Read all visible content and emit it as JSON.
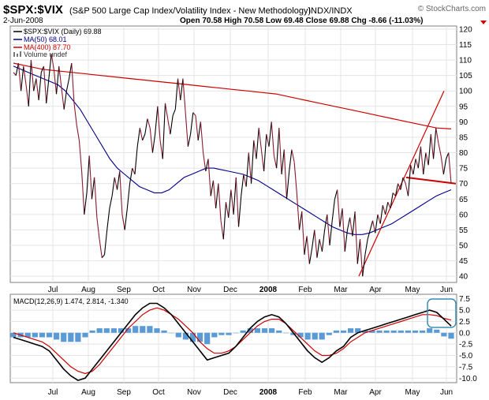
{
  "header": {
    "symbol": "$SPX:$VIX",
    "description": "(S&P 500 Large Cap Index/Volatility Index - New Methodology)",
    "exchange": "INDX/INDX",
    "copyright": "© StockCharts.com",
    "date": "2-Jun-2008",
    "ohlc": "Open 70.58  High 70.58  Low 69.48  Close 69.88  Chg -8.66 (-11.03%)"
  },
  "colors": {
    "price": "#000000",
    "price_down": "#8a1a2e",
    "ma50": "#00008b",
    "ma400": "#cc0000",
    "trend": "#cc0000",
    "macd": "#000000",
    "signal": "#cc0000",
    "histogram": "#5b9bd5",
    "highlight": "#3a8fb5"
  },
  "chart_data": [
    {
      "type": "line",
      "panel": "price",
      "title": "$SPX:$VIX (Daily) 69.88",
      "legend": [
        "$SPX:$VIX (Daily) 69.88",
        "MA(50) 68.01",
        "MA(400) 87.70",
        "Volume undef"
      ],
      "legend_position": "top-left",
      "x_ticks": [
        "Jul",
        "Aug",
        "Sep",
        "Oct",
        "Nov",
        "Dec",
        "2008",
        "Feb",
        "Mar",
        "Apr",
        "May",
        "Jun"
      ],
      "y_ticks": [
        40,
        45,
        50,
        55,
        60,
        65,
        70,
        75,
        80,
        85,
        90,
        95,
        100,
        105,
        110,
        115,
        120
      ],
      "ylim": [
        38,
        121
      ],
      "grid": true,
      "series": [
        {
          "name": "$SPX:$VIX (Daily)",
          "last": 69.88,
          "values": [
            106,
            105,
            109,
            100,
            108,
            102,
            95,
            110,
            100,
            104,
            97,
            106,
            108,
            96,
            104,
            112,
            107,
            99,
            108,
            101,
            94,
            100,
            104,
            109,
            96,
            89,
            84,
            74,
            60,
            67,
            79,
            65,
            72,
            59,
            52,
            46,
            47,
            55,
            62,
            66,
            72,
            68,
            74,
            60,
            55,
            62,
            70,
            75,
            73,
            82,
            88,
            84,
            86,
            91,
            88,
            80,
            86,
            95,
            84,
            78,
            96,
            91,
            86,
            92,
            94,
            104,
            97,
            104,
            93,
            82,
            86,
            93,
            92,
            84,
            90,
            80,
            74,
            78,
            66,
            71,
            62,
            70,
            58,
            52,
            64,
            59,
            68,
            60,
            72,
            56,
            66,
            73,
            69,
            80,
            70,
            84,
            78,
            88,
            81,
            74,
            86,
            82,
            90,
            79,
            75,
            88,
            73,
            81,
            65,
            74,
            81,
            77,
            67,
            55,
            61,
            47,
            53,
            44,
            49,
            55,
            46,
            52,
            48,
            55,
            60,
            50,
            58,
            65,
            68,
            56,
            62,
            48,
            55,
            59,
            53,
            61,
            44,
            52,
            40,
            47,
            52,
            55,
            58,
            54,
            60,
            57,
            63,
            60,
            64,
            62,
            67,
            66,
            70,
            68,
            72,
            70,
            66,
            76,
            73,
            78,
            75,
            82,
            73,
            80,
            76,
            86,
            78,
            88,
            83,
            79,
            73,
            78,
            80,
            70
          ]
        },
        {
          "name": "MA(50)",
          "last": 68.01,
          "values": [
            108,
            107,
            106,
            105,
            104,
            103,
            102,
            100,
            97,
            94,
            90,
            86,
            82,
            78,
            75,
            73,
            71,
            69,
            68,
            67,
            67,
            68,
            70,
            72,
            73,
            74,
            75,
            75,
            74.5,
            74,
            73.5,
            73,
            72,
            71,
            69.5,
            68,
            66.5,
            65,
            63.5,
            62,
            60.5,
            59,
            57.5,
            56,
            55,
            54,
            53.5,
            53.5,
            54,
            55,
            56,
            57,
            58.5,
            60,
            61.5,
            63,
            64.5,
            66,
            67,
            68
          ]
        },
        {
          "name": "MA(400)",
          "last": 87.7,
          "values": [
            109,
            108,
            107,
            106.5,
            106,
            105.5,
            105,
            104.5,
            104,
            103.5,
            103,
            102.5,
            102,
            101.5,
            101,
            100.5,
            100,
            99.5,
            99,
            98,
            97,
            96,
            95,
            94,
            93,
            92,
            91,
            90,
            89,
            88,
            87.7
          ]
        },
        {
          "name": "Trend lines",
          "lines": [
            {
              "from": [
                "Mar",
                40
              ],
              "to": [
                "Jun",
                100
              ]
            },
            {
              "from": [
                "May",
                72
              ],
              "to": [
                "Jun",
                70
              ]
            }
          ]
        }
      ]
    },
    {
      "type": "line",
      "panel": "macd",
      "title": "MACD(12,26,9)",
      "legend": [
        "MACD(12,26,9) 1.474, 2.814, -1.340"
      ],
      "legend_position": "top-left",
      "x_ticks": [
        "Jul",
        "Aug",
        "Sep",
        "Oct",
        "Nov",
        "Dec",
        "2008",
        "Feb",
        "Mar",
        "Apr",
        "May",
        "Jun"
      ],
      "y_ticks": [
        -10.0,
        -7.5,
        -5.0,
        -2.5,
        0.0,
        2.5,
        5.0,
        7.5
      ],
      "ylim": [
        -11,
        8.5
      ],
      "grid": true,
      "series": [
        {
          "name": "MACD",
          "last": 1.474,
          "values": [
            -1,
            -1.5,
            -2,
            -2.5,
            -3,
            -4,
            -6,
            -8,
            -9.5,
            -10.5,
            -10,
            -8,
            -6,
            -4,
            -2,
            0,
            2,
            4,
            5.5,
            6.5,
            6.5,
            5.5,
            4,
            2,
            0,
            -2,
            -4,
            -6,
            -5.5,
            -5,
            -4.5,
            -3,
            -1,
            1,
            2.5,
            3.5,
            4,
            3.5,
            2,
            0,
            -2,
            -4,
            -5.5,
            -6.5,
            -5.5,
            -4,
            -3,
            -1,
            0,
            0.5,
            1,
            1.5,
            2,
            2.5,
            3,
            3.5,
            4,
            4.5,
            5,
            4.5,
            3,
            1.5
          ]
        },
        {
          "name": "Signal",
          "last": 2.814,
          "values": [
            0,
            -0.5,
            -1,
            -1.5,
            -2,
            -3,
            -4.5,
            -6,
            -7.5,
            -8.5,
            -9,
            -8.5,
            -7,
            -5,
            -3,
            -1,
            1,
            2.5,
            4,
            5,
            5.5,
            5,
            4,
            3,
            1.5,
            0,
            -2,
            -3.5,
            -4.5,
            -4.5,
            -4,
            -3,
            -1.5,
            0,
            1.5,
            2.5,
            3,
            3,
            2,
            0.5,
            -1,
            -2.5,
            -4,
            -5,
            -5,
            -4.5,
            -3.5,
            -2,
            -1,
            0,
            0.5,
            1,
            1.5,
            2,
            2.5,
            3,
            3.5,
            4,
            4,
            3.8,
            3.2,
            2.8
          ]
        },
        {
          "name": "Histogram",
          "last": -1.34,
          "values": [
            -1,
            -1,
            -1,
            -1,
            -1,
            -1,
            -1.5,
            -2,
            -2,
            -2,
            -1,
            0.5,
            1,
            1,
            1,
            1,
            1,
            1.5,
            1.5,
            1.5,
            1,
            0.5,
            0,
            -1,
            -1.5,
            -2,
            -2,
            -2.5,
            -1,
            -0.5,
            -0.5,
            0,
            0.5,
            1,
            1,
            1,
            1,
            0.5,
            0,
            -0.5,
            -1,
            -1.5,
            -1.5,
            -1.5,
            -0.5,
            0.5,
            0.5,
            1,
            1,
            0.5,
            0.5,
            0.5,
            0.5,
            0.5,
            0.5,
            0.5,
            0.5,
            0.5,
            1,
            0.7,
            -0.8,
            -1.3
          ]
        }
      ]
    }
  ]
}
